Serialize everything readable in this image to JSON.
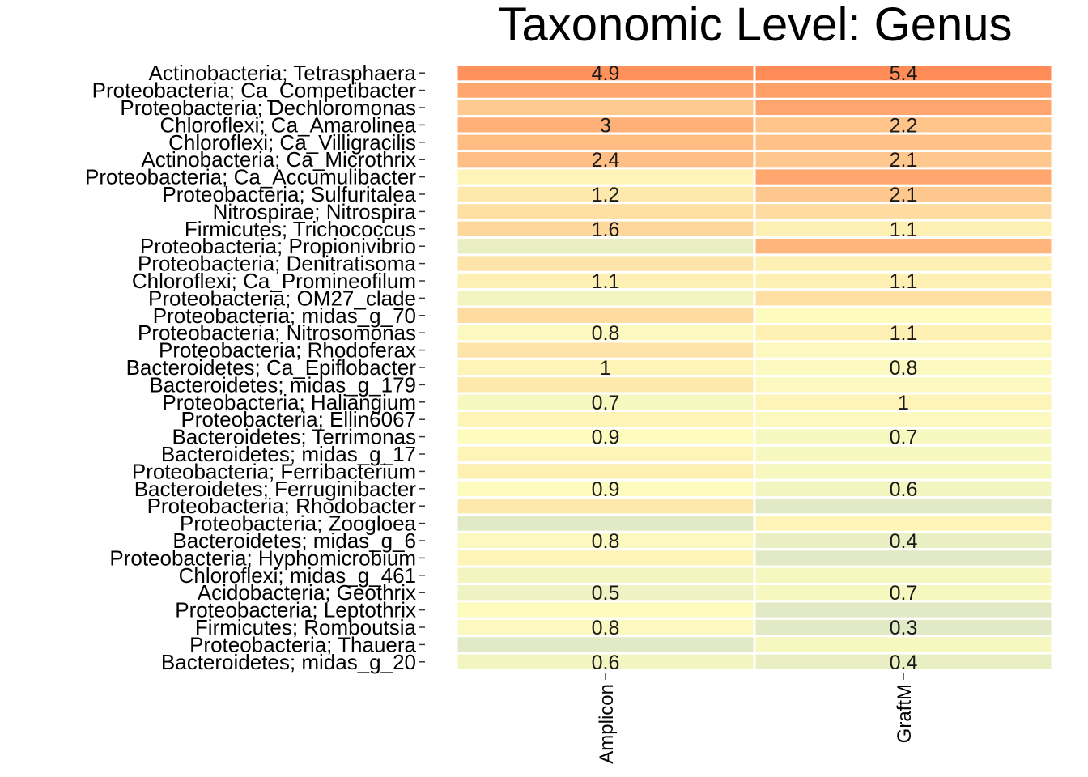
{
  "chart_data": {
    "type": "heatmap",
    "title": "Taxonomic Level: Genus",
    "xlabel": "",
    "ylabel": "",
    "grid": false,
    "legend": "none",
    "columns": [
      "Amplicon",
      "GraftM"
    ],
    "rows": [
      "Actinobacteria; Tetrasphaera",
      "Proteobacteria; Ca_Competibacter",
      "Proteobacteria; Dechloromonas",
      "Chloroflexi; Ca_Amarolinea",
      "Chloroflexi; Ca_Villigracilis",
      "Actinobacteria; Ca_Microthrix",
      "Proteobacteria; Ca_Accumulibacter",
      "Proteobacteria; Sulfuritalea",
      "Nitrospirae; Nitrospira",
      "Firmicutes; Trichococcus",
      "Proteobacteria; Propionivibrio",
      "Proteobacteria; Denitratisoma",
      "Chloroflexi; Ca_Promineofilum",
      "Proteobacteria; OM27_clade",
      "Proteobacteria; midas_g_70",
      "Proteobacteria; Nitrosomonas",
      "Proteobacteria; Rhodoferax",
      "Bacteroidetes; Ca_Epiflobacter",
      "Bacteroidetes; midas_g_179",
      "Proteobacteria; Haliangium",
      "Proteobacteria; Ellin6067",
      "Bacteroidetes; Terrimonas",
      "Bacteroidetes; midas_g_17",
      "Proteobacteria; Ferribacterium",
      "Bacteroidetes; Ferruginibacter",
      "Proteobacteria; Rhodobacter",
      "Proteobacteria; Zoogloea",
      "Bacteroidetes; midas_g_6",
      "Proteobacteria; Hyphomicrobium",
      "Chloroflexi; midas_g_461",
      "Acidobacteria; Geothrix",
      "Proteobacteria; Leptothrix",
      "Firmicutes; Romboutsia",
      "Proteobacteria; Thauera",
      "Bacteroidetes; midas_g_20"
    ],
    "values": [
      [
        4.9,
        5.4
      ],
      [
        3.5,
        3.9
      ],
      [
        2.0,
        3.6
      ],
      [
        3.0,
        2.2
      ],
      [
        2.5,
        2.3
      ],
      [
        2.4,
        2.1
      ],
      [
        1.0,
        3.5
      ],
      [
        1.2,
        2.1
      ],
      [
        1.4,
        1.5
      ],
      [
        1.6,
        1.1
      ],
      [
        0.4,
        2.8
      ],
      [
        1.3,
        1.1
      ],
      [
        1.1,
        1.1
      ],
      [
        0.6,
        1.4
      ],
      [
        1.5,
        0.9
      ],
      [
        0.8,
        1.1
      ],
      [
        1.3,
        0.8
      ],
      [
        1.0,
        0.8
      ],
      [
        1.2,
        0.8
      ],
      [
        0.7,
        1.0
      ],
      [
        1.0,
        0.8
      ],
      [
        0.9,
        0.7
      ],
      [
        1.0,
        0.7
      ],
      [
        1.1,
        0.7
      ],
      [
        0.9,
        0.6
      ],
      [
        1.2,
        0.3
      ],
      [
        0.3,
        1.0
      ],
      [
        0.8,
        0.4
      ],
      [
        1.0,
        0.3
      ],
      [
        0.6,
        0.7
      ],
      [
        0.5,
        0.7
      ],
      [
        0.9,
        0.3
      ],
      [
        0.8,
        0.3
      ],
      [
        0.3,
        0.7
      ],
      [
        0.6,
        0.4
      ]
    ],
    "labels": [
      [
        "4.9",
        "5.4"
      ],
      [
        "",
        ""
      ],
      [
        "",
        ""
      ],
      [
        "3",
        "2.2"
      ],
      [
        "",
        ""
      ],
      [
        "2.4",
        "2.1"
      ],
      [
        "",
        ""
      ],
      [
        "1.2",
        "2.1"
      ],
      [
        "",
        ""
      ],
      [
        "1.6",
        "1.1"
      ],
      [
        "",
        ""
      ],
      [
        "",
        ""
      ],
      [
        "1.1",
        "1.1"
      ],
      [
        "",
        ""
      ],
      [
        "",
        ""
      ],
      [
        "0.8",
        "1.1"
      ],
      [
        "",
        ""
      ],
      [
        "1",
        "0.8"
      ],
      [
        "",
        ""
      ],
      [
        "0.7",
        "1"
      ],
      [
        "",
        ""
      ],
      [
        "0.9",
        "0.7"
      ],
      [
        "",
        ""
      ],
      [
        "",
        ""
      ],
      [
        "0.9",
        "0.6"
      ],
      [
        "",
        ""
      ],
      [
        "",
        ""
      ],
      [
        "0.8",
        "0.4"
      ],
      [
        "",
        ""
      ],
      [
        "",
        ""
      ],
      [
        "0.5",
        "0.7"
      ],
      [
        "",
        ""
      ],
      [
        "0.8",
        "0.3"
      ],
      [
        "",
        ""
      ],
      [
        "0.6",
        "0.4"
      ]
    ],
    "colors": {
      "low": "#d7e4c8",
      "mid": "#fefbbe",
      "high": "#ff8c56",
      "cell_border": "#ffffff",
      "text": "#1a1a1a"
    }
  }
}
